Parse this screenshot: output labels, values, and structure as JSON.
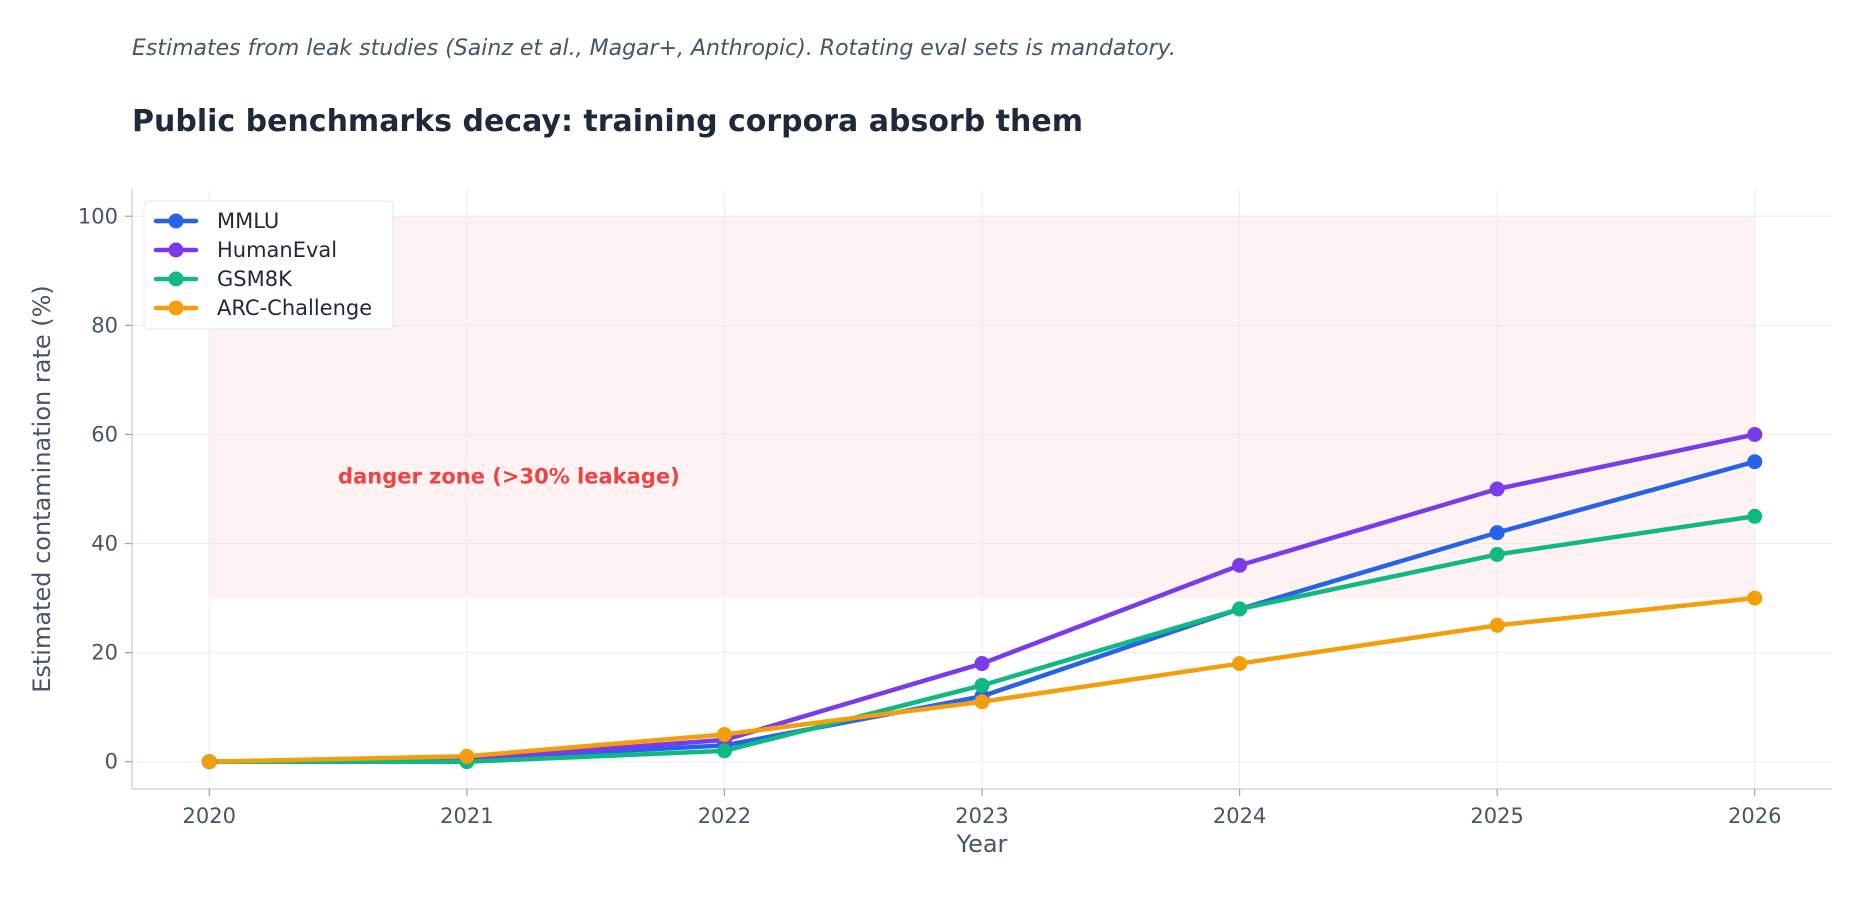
{
  "subtitle": "Estimates from leak studies (Sainz et al., Magar+, Anthropic). Rotating eval sets is mandatory.",
  "chart_data": {
    "type": "line",
    "title": "Public benchmarks decay: training corpora absorb them",
    "xlabel": "Year",
    "ylabel": "Estimated contamination rate (%)",
    "x": [
      2020,
      2021,
      2022,
      2023,
      2024,
      2025,
      2026
    ],
    "xlim": [
      2019.7,
      2026.3
    ],
    "ylim": [
      -5,
      105
    ],
    "yticks": [
      0,
      20,
      40,
      60,
      80,
      100
    ],
    "grid": true,
    "legend_position": "top-left",
    "series": [
      {
        "name": "MMLU",
        "color": "#2563eb",
        "values": [
          0,
          0.5,
          3,
          12,
          28,
          42,
          55
        ]
      },
      {
        "name": "HumanEval",
        "color": "#7c3aed",
        "values": [
          0,
          0.5,
          4,
          18,
          36,
          50,
          60
        ]
      },
      {
        "name": "GSM8K",
        "color": "#10b981",
        "values": [
          0,
          0,
          2,
          14,
          28,
          38,
          45
        ]
      },
      {
        "name": "ARC-Challenge",
        "color": "#f59e0b",
        "values": [
          0,
          1,
          5,
          11,
          18,
          25,
          30
        ]
      }
    ],
    "annotation": {
      "text": "danger zone (>30% leakage)",
      "color": "#ef4444",
      "x": 2020.5,
      "y": 51,
      "band": {
        "x0": 2020,
        "x1": 2026,
        "y0": 30,
        "y1": 100,
        "color": "#fef2f2"
      }
    }
  }
}
